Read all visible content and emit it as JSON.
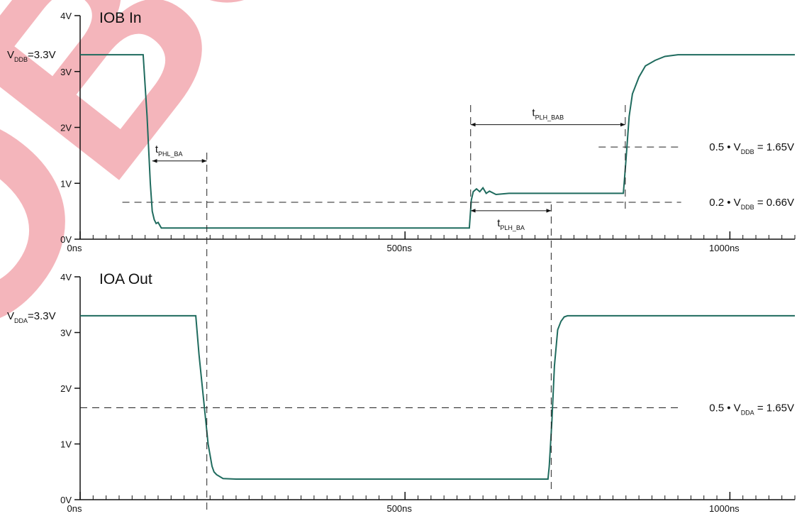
{
  "watermark": "OBS",
  "time_markers": [
    195,
    601,
    725,
    839
  ],
  "chart_data": [
    {
      "type": "line",
      "title": "IOB  In",
      "color": "#1f6b5e",
      "x": [
        0,
        97,
        103,
        108,
        111,
        114,
        117,
        120,
        125,
        140,
        599,
        602,
        605,
        610,
        615,
        620,
        625,
        630,
        640,
        660,
        836,
        840,
        845,
        850,
        860,
        870,
        885,
        900,
        920,
        1100
      ],
      "values": [
        3.3,
        3.3,
        2.2,
        1.0,
        0.5,
        0.35,
        0.28,
        0.3,
        0.2,
        0.2,
        0.2,
        0.7,
        0.85,
        0.9,
        0.85,
        0.92,
        0.82,
        0.86,
        0.8,
        0.82,
        0.82,
        1.4,
        2.2,
        2.6,
        2.9,
        3.1,
        3.2,
        3.27,
        3.3,
        3.3
      ],
      "xlim": [
        0,
        1100
      ],
      "ylim": [
        0,
        4
      ],
      "x_minor_step": 20,
      "xticks": [
        {
          "value": 0,
          "label": "0ns"
        },
        {
          "value": 500,
          "label": "500ns"
        },
        {
          "value": 1000,
          "label": "1000ns"
        }
      ],
      "yticks": [
        {
          "value": 0,
          "label": "0V"
        },
        {
          "value": 1,
          "label": "1V"
        },
        {
          "value": 2,
          "label": "2V"
        },
        {
          "value": 3,
          "label": "3V"
        },
        {
          "value": 4,
          "label": "4V"
        }
      ],
      "supply": {
        "value": 3.3,
        "label": {
          "pre": "V",
          "sub": "DDB",
          "post": "=3.3V"
        }
      },
      "ref_lines": [
        {
          "value": 1.65,
          "from": 798,
          "to": 925,
          "label": {
            "pre": "0.5 • V",
            "sub": "DDB",
            "post": " = 1.65V"
          }
        },
        {
          "value": 0.66,
          "from": 65,
          "to": 925,
          "label": {
            "pre": "0.2 • V",
            "sub": "DDB",
            "post": " = 0.66V"
          }
        }
      ],
      "arrows": [
        {
          "from": 111,
          "to": 195,
          "y": 1.4,
          "label": {
            "pre": "t",
            "sub": "PHL_BA"
          }
        },
        {
          "from": 601,
          "to": 839,
          "y": 2.05,
          "label": {
            "pre": "t",
            "sub": "PLH_BAB"
          }
        },
        {
          "from": 601,
          "to": 725,
          "y": 0.51,
          "label": {
            "pre": "t",
            "sub": "PLH_BA"
          }
        }
      ]
    },
    {
      "type": "line",
      "title": "IOA  Out",
      "color": "#1f6b5e",
      "x": [
        0,
        178,
        183,
        190,
        197,
        203,
        206,
        210,
        220,
        240,
        720,
        722,
        726,
        730,
        735,
        740,
        745,
        750,
        1100
      ],
      "values": [
        3.3,
        3.3,
        2.6,
        1.8,
        1.0,
        0.6,
        0.5,
        0.45,
        0.38,
        0.37,
        0.37,
        0.6,
        1.4,
        2.4,
        3.05,
        3.2,
        3.28,
        3.3,
        3.3
      ],
      "xlim": [
        0,
        1100
      ],
      "ylim": [
        0,
        4
      ],
      "x_minor_step": 20,
      "xticks": [
        {
          "value": 0,
          "label": "0ns"
        },
        {
          "value": 500,
          "label": "500ns"
        },
        {
          "value": 1000,
          "label": "1000ns"
        }
      ],
      "yticks": [
        {
          "value": 0,
          "label": "0V"
        },
        {
          "value": 1,
          "label": "1V"
        },
        {
          "value": 2,
          "label": "2V"
        },
        {
          "value": 3,
          "label": "3V"
        },
        {
          "value": 4,
          "label": "4V"
        }
      ],
      "supply": {
        "value": 3.3,
        "label": {
          "pre": "V",
          "sub": "DDA",
          "post": "=3.3V"
        }
      },
      "ref_lines": [
        {
          "value": 1.65,
          "from": 0,
          "to": 925,
          "label": {
            "pre": "0.5 • V",
            "sub": "DDA",
            "post": " = 1.65V"
          }
        }
      ],
      "arrows": []
    }
  ]
}
